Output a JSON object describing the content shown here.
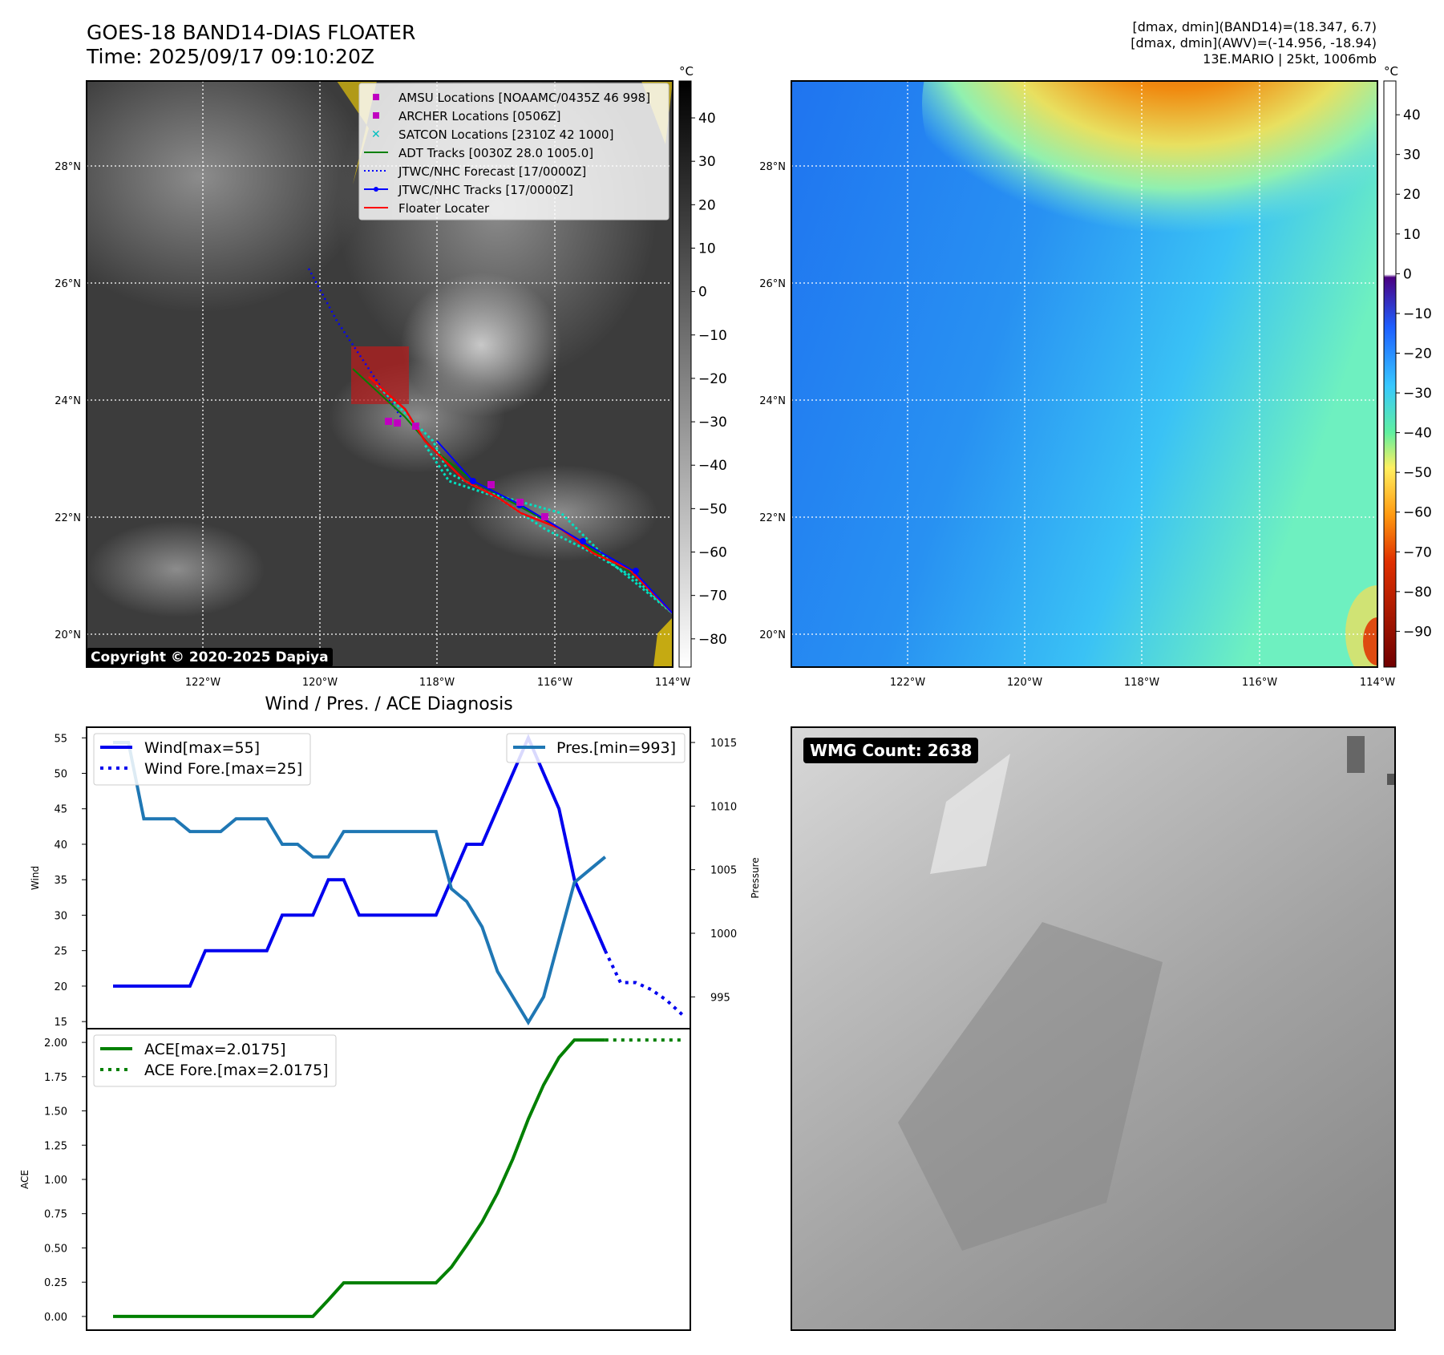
{
  "header": {
    "title_line1": "GOES-18 BAND14-DIAS FLOATER",
    "title_line2": "Time: 2025/09/17 09:10:20Z",
    "right_line1": "[dmax, dmin](BAND14)=(18.347, 6.7)",
    "right_line2": "[dmax, dmin](AWV)=(-14.956, -18.94)",
    "right_line3": "13E.MARIO | 25kt, 1006mb"
  },
  "map_axes": {
    "lon_ticks": [
      "122°W",
      "120°W",
      "118°W",
      "116°W",
      "114°W"
    ],
    "lat_ticks": [
      "28°N",
      "26°N",
      "24°N",
      "22°N",
      "20°N"
    ]
  },
  "ir_map": {
    "colorbar_unit": "°C",
    "colorbar_ticks": [
      "40",
      "30",
      "20",
      "10",
      "0",
      "−10",
      "−20",
      "−30",
      "−40",
      "−50",
      "−60",
      "−70",
      "−80"
    ],
    "legend": [
      {
        "label": "AMSU Locations [NOAAMC/0435Z 46 998]",
        "color": "#c000c0",
        "style": "square"
      },
      {
        "label": "ARCHER Locations [0506Z]",
        "color": "#c000c0",
        "style": "square"
      },
      {
        "label": "SATCON Locations [2310Z 42 1000]",
        "color": "#00c0c0",
        "style": "x"
      },
      {
        "label": "ADT Tracks [0030Z 28.0 1005.0]",
        "color": "#008000",
        "style": "line"
      },
      {
        "label": "JTWC/NHC Forecast [17/0000Z]",
        "color": "#0000ff",
        "style": "dotted"
      },
      {
        "label": "JTWC/NHC Tracks [17/0000Z]",
        "color": "#0000ff",
        "style": "line-dot"
      },
      {
        "label": "Floater Locater",
        "color": "#ff0000",
        "style": "line"
      }
    ],
    "copyright": "Copyright © 2020-2025 Dapiya"
  },
  "wv_map": {
    "colorbar_unit": "°C",
    "colorbar_ticks": [
      "40",
      "30",
      "20",
      "10",
      "0",
      "−10",
      "−20",
      "−30",
      "−40",
      "−50",
      "−60",
      "−70",
      "−80",
      "−90"
    ]
  },
  "diagnosis": {
    "title": "Wind / Pres. / ACE Diagnosis",
    "wind_ylabel": "Wind",
    "pressure_ylabel": "Pressure",
    "ace_ylabel": "ACE",
    "wind_ticks": [
      "55",
      "50",
      "45",
      "40",
      "35",
      "30",
      "25",
      "20",
      "15"
    ],
    "pressure_ticks": [
      "1015",
      "1010",
      "1005",
      "1000",
      "995"
    ],
    "ace_ticks": [
      "2.00",
      "1.75",
      "1.50",
      "1.25",
      "1.00",
      "0.75",
      "0.50",
      "0.25",
      "0.00"
    ],
    "legend_wind": "Wind[max=55]",
    "legend_wind_fore": "Wind Fore.[max=25]",
    "legend_pres": "Pres.[min=993]",
    "legend_ace": "ACE[max=2.0175]",
    "legend_ace_fore": "ACE Fore.[max=2.0175]"
  },
  "wmg_panel": {
    "label": "WMG Count: 2638"
  },
  "chart_data": [
    {
      "type": "line",
      "title": "Wind / Pres. / ACE Diagnosis",
      "ylabel": "Wind",
      "ylim": [
        14,
        56.5
      ],
      "x": [
        0,
        1,
        2,
        3,
        4,
        5,
        6,
        7,
        8,
        9,
        10,
        11,
        12,
        13,
        14,
        15,
        16,
        17,
        18,
        19,
        20,
        21,
        22,
        23,
        24,
        25,
        26,
        27,
        28,
        29,
        30,
        31,
        32,
        33,
        34,
        35,
        36,
        37
      ],
      "series": [
        {
          "name": "Wind[max=55]",
          "color": "#0000ee",
          "x": [
            0,
            1,
            2,
            3,
            4,
            5,
            6,
            7,
            8,
            9,
            10,
            11,
            12,
            13,
            14,
            15,
            16,
            17,
            18,
            19,
            20,
            21,
            22,
            23,
            24,
            25,
            26,
            27,
            28,
            29,
            30,
            31,
            32
          ],
          "values": [
            20,
            20,
            20,
            20,
            20,
            20,
            25,
            25,
            25,
            25,
            25,
            30,
            30,
            30,
            35,
            35,
            30,
            30,
            30,
            30,
            30,
            30,
            35,
            40,
            40,
            45,
            50,
            55,
            50,
            45,
            35,
            30,
            25
          ]
        },
        {
          "name": "Wind Fore.[max=25]",
          "color": "#0000ee",
          "dash": true,
          "x": [
            32,
            33,
            34,
            35,
            36,
            37
          ],
          "values": [
            25,
            20.5,
            20.5,
            19.5,
            18,
            16
          ]
        }
      ]
    },
    {
      "type": "line",
      "ylabel": "Pressure",
      "ylim": [
        992.5,
        1016.2
      ],
      "x": [
        0,
        1,
        2,
        3,
        4,
        5,
        6,
        7,
        8,
        9,
        10,
        11,
        12,
        13,
        14,
        15,
        16,
        17,
        18,
        19,
        20,
        21,
        22,
        23,
        24,
        25,
        26,
        27,
        28,
        29,
        30,
        31,
        32
      ],
      "series": [
        {
          "name": "Pres.[min=993]",
          "color": "#1f77b4",
          "values": [
            1015,
            1015,
            1009,
            1009,
            1009,
            1008,
            1008,
            1008,
            1009,
            1009,
            1009,
            1007,
            1007,
            1006,
            1006,
            1008,
            1008,
            1008,
            1008,
            1008,
            1008,
            1008,
            1003.5,
            1002.5,
            1000.5,
            997,
            995,
            993,
            995,
            999.5,
            1004,
            1005,
            1006
          ]
        }
      ]
    },
    {
      "type": "line",
      "ylabel": "ACE",
      "ylim": [
        -0.1,
        2.1
      ],
      "x": [
        0,
        1,
        2,
        3,
        4,
        5,
        6,
        7,
        8,
        9,
        10,
        11,
        12,
        13,
        14,
        15,
        16,
        17,
        18,
        19,
        20,
        21,
        22,
        23,
        24,
        25,
        26,
        27,
        28,
        29,
        30,
        31,
        32,
        33,
        34,
        35,
        36,
        37
      ],
      "series": [
        {
          "name": "ACE[max=2.0175]",
          "color": "#008000",
          "x": [
            0,
            1,
            2,
            3,
            4,
            5,
            6,
            7,
            8,
            9,
            10,
            11,
            12,
            13,
            14,
            15,
            16,
            17,
            18,
            19,
            20,
            21,
            22,
            23,
            24,
            25,
            26,
            27,
            28,
            29,
            30,
            31,
            32
          ],
          "values": [
            0,
            0,
            0,
            0,
            0,
            0,
            0,
            0,
            0,
            0,
            0,
            0,
            0,
            0,
            0.12,
            0.245,
            0.245,
            0.245,
            0.245,
            0.245,
            0.245,
            0.245,
            0.36,
            0.52,
            0.69,
            0.9,
            1.15,
            1.44,
            1.69,
            1.89,
            2.0175,
            2.0175,
            2.0175
          ]
        },
        {
          "name": "ACE Fore.[max=2.0175]",
          "color": "#008000",
          "dash": true,
          "x": [
            32,
            33,
            34,
            35,
            36,
            37
          ],
          "values": [
            2.0175,
            2.0175,
            2.0175,
            2.0175,
            2.0175,
            2.0175
          ]
        }
      ]
    }
  ]
}
